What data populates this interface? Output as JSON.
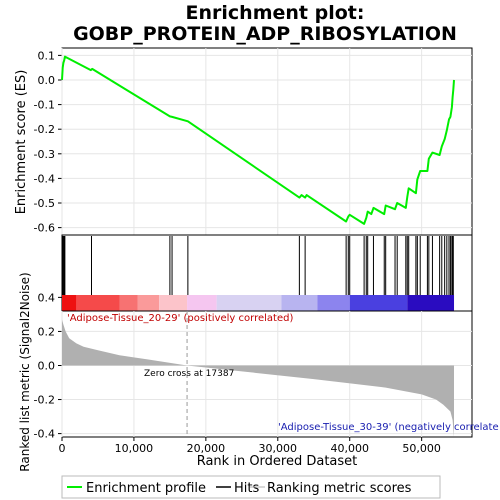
{
  "chart_data": {
    "type": "line",
    "title": "Enrichment plot: GOBP_PROTEIN_ADP_RIBOSYLATION",
    "title_line1": "Enrichment plot:",
    "title_line2": "GOBP_PROTEIN_ADP_RIBOSYLATION",
    "xlabel": "Rank in Ordered Dataset",
    "xlim": [
      0,
      57000
    ],
    "x_ticks": [
      0,
      10000,
      20000,
      30000,
      40000,
      50000
    ],
    "x_tick_labels": [
      "0",
      "10,000",
      "20,000",
      "30,000",
      "40,000",
      "50,000"
    ],
    "es_panel": {
      "ylabel": "Enrichment score (ES)",
      "ylim": [
        -0.63,
        0.13
      ],
      "y_ticks": [
        0.1,
        0.0,
        -0.1,
        -0.2,
        -0.3,
        -0.4,
        -0.5,
        -0.6
      ],
      "y_tick_labels": [
        "0.1",
        "0.0",
        "-0.1",
        "-0.2",
        "-0.3",
        "-0.4",
        "-0.5",
        "-0.6"
      ],
      "series": {
        "color": "#00ee00",
        "x": [
          0,
          100,
          200,
          300,
          400,
          4000,
          4200,
          15000,
          15300,
          17500,
          33000,
          33300,
          33800,
          34000,
          39500,
          39800,
          40000,
          42000,
          42300,
          42500,
          43000,
          43300,
          44800,
          45000,
          46300,
          46600,
          47800,
          48000,
          48200,
          49200,
          49400,
          49800,
          50800,
          51000,
          51500,
          52500,
          52800,
          53200,
          53500,
          53800,
          54000,
          54200,
          54300,
          54400,
          54500
        ],
        "y": [
          0.0,
          0.05,
          0.07,
          0.08,
          0.095,
          0.04,
          0.045,
          -0.148,
          -0.15,
          -0.168,
          -0.478,
          -0.468,
          -0.478,
          -0.468,
          -0.575,
          -0.555,
          -0.548,
          -0.585,
          -0.56,
          -0.535,
          -0.545,
          -0.52,
          -0.545,
          -0.51,
          -0.525,
          -0.5,
          -0.52,
          -0.475,
          -0.44,
          -0.46,
          -0.405,
          -0.37,
          -0.37,
          -0.32,
          -0.295,
          -0.305,
          -0.27,
          -0.24,
          -0.205,
          -0.16,
          -0.15,
          -0.11,
          -0.07,
          -0.04,
          0.0
        ]
      }
    },
    "hits": [
      100,
      200,
      300,
      400,
      4100,
      15000,
      15300,
      17500,
      33000,
      33800,
      39500,
      39800,
      40000,
      42000,
      42300,
      42500,
      43300,
      44800,
      45000,
      46300,
      46600,
      47800,
      48000,
      48200,
      49200,
      49400,
      49800,
      50800,
      51000,
      51500,
      52500,
      52800,
      53200,
      53500,
      53800,
      54000,
      54200,
      54300,
      54400
    ],
    "metric_panel": {
      "ylabel": "Ranked list metric (Signal2Noise)",
      "ylim": [
        -0.42,
        0.32
      ],
      "y_ticks": [
        0.4,
        0.2,
        0.0,
        -0.2,
        -0.4
      ],
      "y_tick_labels": [
        "0.4",
        "0.2",
        "0.0",
        "-0.2",
        "-0.4"
      ],
      "zero_cross": 17387,
      "zero_cross_label": "Zero cross at 17387",
      "positive_label": "'Adipose-Tissue_20-29' (positively correlated)",
      "negative_label": "'Adipose-Tissue_30-39' (negatively correlate",
      "fill_color": "#b0b0b0",
      "x": [
        0,
        200,
        500,
        1000,
        2000,
        3000,
        5000,
        8000,
        12000,
        17387,
        25000,
        35000,
        45000,
        50000,
        52000,
        53000,
        54000,
        54300,
        54500
      ],
      "values": [
        0.27,
        0.24,
        0.2,
        0.16,
        0.13,
        0.11,
        0.09,
        0.06,
        0.035,
        0.0,
        -0.035,
        -0.08,
        -0.13,
        -0.17,
        -0.2,
        -0.23,
        -0.27,
        -0.32,
        -0.42
      ]
    },
    "gradient_segments": [
      {
        "from": 0,
        "to": 2000,
        "color": "#ee1111"
      },
      {
        "from": 2000,
        "to": 8000,
        "color": "#f54a4a"
      },
      {
        "from": 8000,
        "to": 10500,
        "color": "#f77272"
      },
      {
        "from": 10500,
        "to": 13500,
        "color": "#fa9a9a"
      },
      {
        "from": 13500,
        "to": 17387,
        "color": "#fcc4ca"
      },
      {
        "from": 17387,
        "to": 21500,
        "color": "#f5c6f0"
      },
      {
        "from": 21500,
        "to": 30500,
        "color": "#d8d2f2"
      },
      {
        "from": 30500,
        "to": 35500,
        "color": "#b8b4f0"
      },
      {
        "from": 35500,
        "to": 40000,
        "color": "#8c84ee"
      },
      {
        "from": 40000,
        "to": 48000,
        "color": "#4a40e0"
      },
      {
        "from": 48000,
        "to": 54500,
        "color": "#2a0cc0"
      }
    ],
    "legend": [
      {
        "label": "Enrichment profile",
        "color": "#00ee00"
      },
      {
        "label": "Hits",
        "color": "#000000"
      },
      {
        "label": "Ranking metric scores",
        "color": "#b0b0b0"
      }
    ],
    "legend_position": "bottom"
  }
}
